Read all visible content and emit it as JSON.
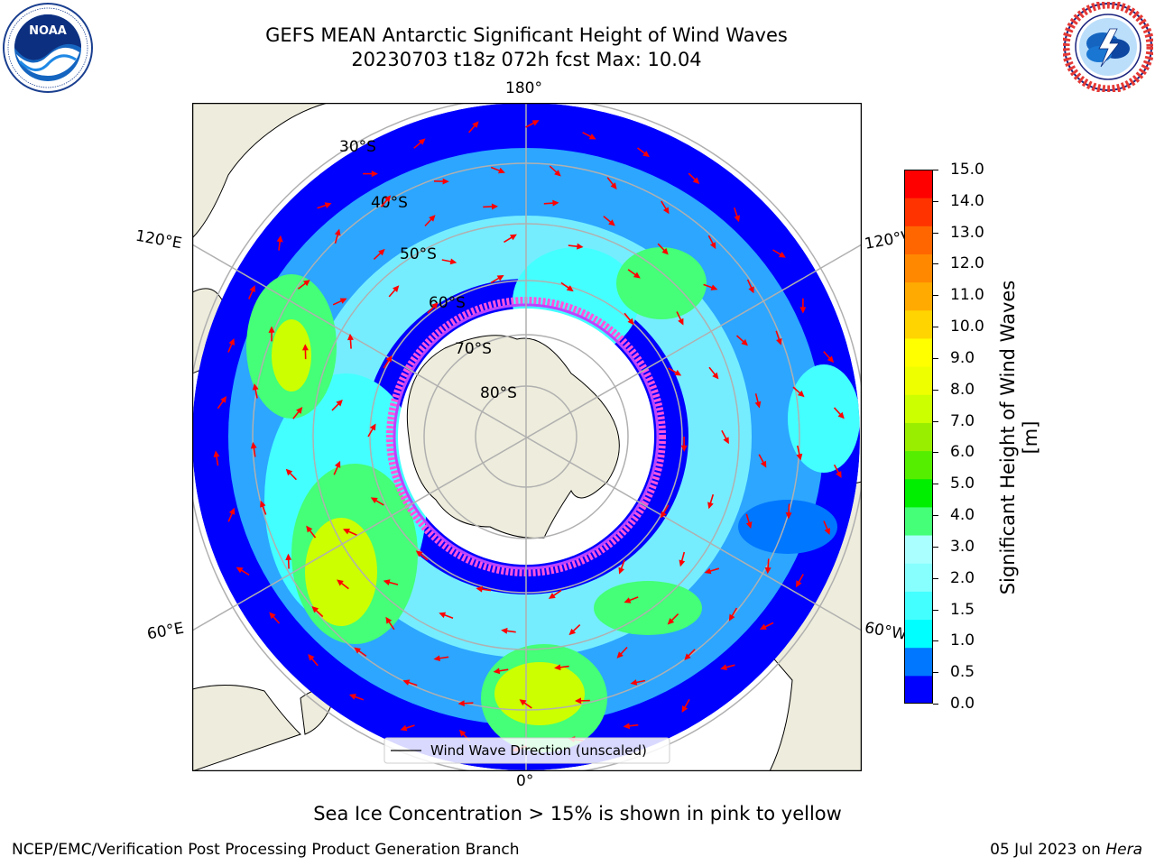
{
  "header": {
    "title_line1": "GEFS MEAN Antarctic Significant Height of Wind Waves",
    "title_line2": "20230703 t18z 072h fcst   Max: 10.04"
  },
  "logos": {
    "noaa": {
      "label": "NOAA",
      "ring_text": "NATIONAL OCEANIC AND ATMOSPHERIC ADMINISTRATION · U.S. DEPARTMENT OF COMMERCE"
    },
    "nws": {
      "ring_text": "NATIONAL WEATHER SERVICE"
    }
  },
  "map": {
    "longitude_labels": {
      "top": "180°",
      "bottom": "0°",
      "upper_left": "120°E",
      "upper_right": "120°W",
      "lower_left": "60°E",
      "lower_right": "60°W"
    },
    "latitude_labels": [
      "30°S",
      "40°S",
      "50°S",
      "60°S",
      "70°S",
      "80°S"
    ],
    "legend": {
      "label": "Wind Wave Direction (unscaled)",
      "line_color": "#000000"
    },
    "arrow_color": "#ff0000",
    "land_color": "#eeecdc",
    "sea_ice_colors": [
      "#ff55dd",
      "#bb44ff",
      "#ffee33"
    ]
  },
  "colorbar": {
    "label": "Significant Height of Wind Waves [m]",
    "ticks": [
      "15.0",
      "14.0",
      "13.0",
      "12.0",
      "11.0",
      "10.0",
      "9.0",
      "8.0",
      "7.0",
      "6.0",
      "5.0",
      "4.0",
      "3.0",
      "2.0",
      "1.5",
      "1.0",
      "0.5",
      "0.0"
    ],
    "colors": [
      "#0000ff",
      "#0077ff",
      "#00ffff",
      "#44ffff",
      "#88ffff",
      "#aaffff",
      "#44ff77",
      "#00ee00",
      "#55ee00",
      "#99ee00",
      "#ccff00",
      "#eeff00",
      "#ffff00",
      "#ffd400",
      "#ffaa00",
      "#ff8800",
      "#ff6600",
      "#ff3300",
      "#ff0000"
    ]
  },
  "chart_data": {
    "type": "heatmap",
    "title": "GEFS MEAN Antarctic Significant Height of Wind Waves",
    "subtitle": "20230703 t18z 072h fcst   Max: 10.04",
    "variable": "Significant Height of Wind Waves [m]",
    "max_value": 10.04,
    "color_levels": [
      0.0,
      0.5,
      1.0,
      1.5,
      2.0,
      3.0,
      4.0,
      5.0,
      6.0,
      7.0,
      8.0,
      9.0,
      10.0,
      11.0,
      12.0,
      13.0,
      14.0,
      15.0
    ],
    "projection": "south polar stereographic",
    "latitude_circles": [
      "30°S",
      "40°S",
      "50°S",
      "60°S",
      "70°S",
      "80°S"
    ],
    "meridians": [
      "0°",
      "60°E",
      "120°E",
      "180°",
      "120°W",
      "60°W"
    ],
    "grid": true,
    "legend_placement": "bottom-center"
  },
  "notes": {
    "sea_ice": "Sea Ice Concentration > 15% is shown in pink to yellow"
  },
  "footer": {
    "left": "NCEP/EMC/Verification Post Processing Product Generation Branch",
    "date": "05 Jul 2023 on",
    "machine": "Hera"
  }
}
